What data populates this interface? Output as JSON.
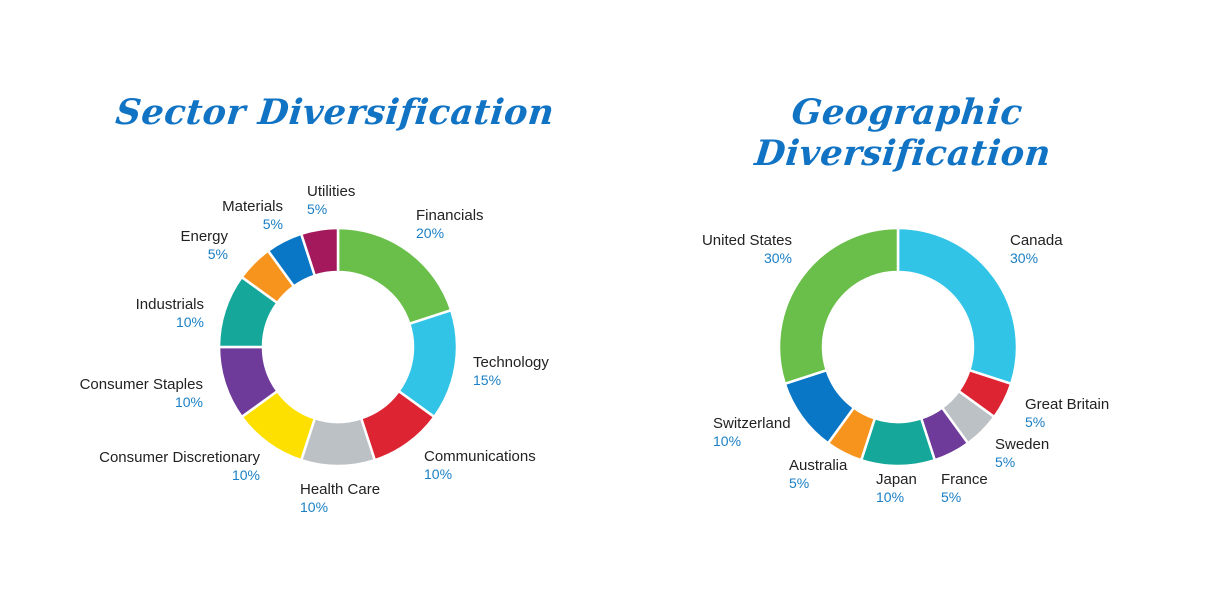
{
  "chart_data": [
    {
      "type": "pie",
      "title": "Sector Diversification",
      "slices": [
        {
          "label": "Financials",
          "value": 20,
          "display": "20%",
          "color": "#6abf4b"
        },
        {
          "label": "Technology",
          "value": 15,
          "display": "15%",
          "color": "#32c4e6"
        },
        {
          "label": "Communications",
          "value": 10,
          "display": "10%",
          "color": "#dd2433"
        },
        {
          "label": "Health Care",
          "value": 10,
          "display": "10%",
          "color": "#bcc1c6"
        },
        {
          "label": "Consumer Discretionary",
          "value": 10,
          "display": "10%",
          "color": "#fde000"
        },
        {
          "label": "Consumer Staples",
          "value": 10,
          "display": "10%",
          "color": "#6f3b9b"
        },
        {
          "label": "Industrials",
          "value": 10,
          "display": "10%",
          "color": "#15a89a"
        },
        {
          "label": "Energy",
          "value": 5,
          "display": "5%",
          "color": "#f7941e"
        },
        {
          "label": "Materials",
          "value": 5,
          "display": "5%",
          "color": "#0a76c6"
        },
        {
          "label": "Utilities",
          "value": 5,
          "display": "5%",
          "color": "#a3195b"
        }
      ]
    },
    {
      "type": "pie",
      "title": "Geographic Diversification",
      "slices": [
        {
          "label": "Canada",
          "value": 30,
          "display": "30%",
          "color": "#32c4e6"
        },
        {
          "label": "Great Britain",
          "value": 5,
          "display": "5%",
          "color": "#dd2433"
        },
        {
          "label": "Sweden",
          "value": 5,
          "display": "5%",
          "color": "#bcc1c6"
        },
        {
          "label": "France",
          "value": 5,
          "display": "5%",
          "color": "#6f3b9b"
        },
        {
          "label": "Japan",
          "value": 10,
          "display": "10%",
          "color": "#15a89a"
        },
        {
          "label": "Australia",
          "value": 5,
          "display": "5%",
          "color": "#f7941e"
        },
        {
          "label": "Switzerland",
          "value": 10,
          "display": "10%",
          "color": "#0a76c6"
        },
        {
          "label": "United States",
          "value": 30,
          "display": "30%",
          "color": "#6abf4b"
        }
      ]
    }
  ]
}
